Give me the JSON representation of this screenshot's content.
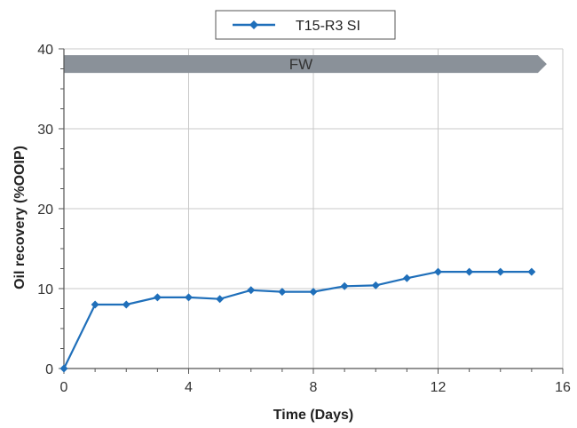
{
  "chart_data": {
    "type": "line",
    "xlabel": "Time (Days)",
    "ylabel": "Oil recovery (%OOIP)",
    "xlim": [
      0,
      16
    ],
    "ylim": [
      0,
      40
    ],
    "xticks": [
      0,
      4,
      8,
      12,
      16
    ],
    "yticks": [
      0,
      10,
      20,
      30,
      40
    ],
    "grid": true,
    "legend_position": "top-center",
    "annotation": {
      "text": "FW",
      "x_start": 0,
      "x_end": 15.2,
      "y": 38.1
    },
    "series": [
      {
        "name": "T15-R3 SI",
        "color": "#1f6fba",
        "marker": "diamond",
        "x": [
          0,
          1,
          2,
          3,
          4,
          5,
          6,
          7,
          8,
          9,
          10,
          11,
          12,
          13,
          14,
          15
        ],
        "y": [
          0,
          8.0,
          8.0,
          8.9,
          8.9,
          8.7,
          9.8,
          9.6,
          9.6,
          10.3,
          10.4,
          11.3,
          12.1,
          12.1,
          12.1,
          12.1
        ]
      }
    ]
  },
  "colors": {
    "series": "#1f6fba",
    "grid": "#c8c8c8",
    "band": "#8a9199",
    "axis": "#555555"
  }
}
